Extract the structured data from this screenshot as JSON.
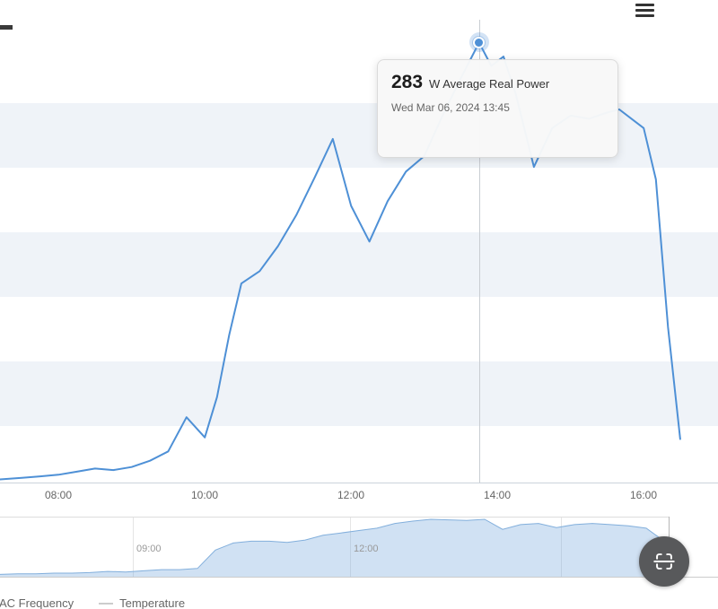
{
  "accent_color": "#4e90d6",
  "band_color": "#eff3f8",
  "icons": {
    "menu": "hamburger-icon",
    "capture": "web-capture-icon"
  },
  "chart_data": {
    "type": "line",
    "title": "",
    "series": [
      {
        "name": "Average Real Power",
        "unit": "W",
        "color": "#4e90d6",
        "points": [
          [
            "07:12",
            2
          ],
          [
            "07:30",
            3
          ],
          [
            "07:45",
            4
          ],
          [
            "08:00",
            5
          ],
          [
            "08:15",
            7
          ],
          [
            "08:30",
            9
          ],
          [
            "08:45",
            8
          ],
          [
            "09:00",
            10
          ],
          [
            "09:15",
            14
          ],
          [
            "09:30",
            20
          ],
          [
            "09:45",
            42
          ],
          [
            "10:00",
            29
          ],
          [
            "10:10",
            55
          ],
          [
            "10:20",
            95
          ],
          [
            "10:30",
            128
          ],
          [
            "10:45",
            136
          ],
          [
            "11:00",
            152
          ],
          [
            "11:15",
            172
          ],
          [
            "11:30",
            196
          ],
          [
            "11:45",
            221
          ],
          [
            "12:00",
            178
          ],
          [
            "12:15",
            155
          ],
          [
            "12:30",
            181
          ],
          [
            "12:45",
            200
          ],
          [
            "13:00",
            210
          ],
          [
            "13:15",
            236
          ],
          [
            "13:30",
            260
          ],
          [
            "13:45",
            283
          ],
          [
            "13:55",
            268
          ],
          [
            "14:05",
            274
          ],
          [
            "14:15",
            250
          ],
          [
            "14:30",
            203
          ],
          [
            "14:45",
            228
          ],
          [
            "15:00",
            236
          ],
          [
            "15:15",
            234
          ],
          [
            "15:30",
            238
          ],
          [
            "15:40",
            240
          ],
          [
            "15:50",
            234
          ],
          [
            "16:00",
            228
          ],
          [
            "16:10",
            195
          ],
          [
            "16:20",
            100
          ],
          [
            "16:30",
            28
          ]
        ]
      }
    ],
    "x_axis": {
      "tick_labels": [
        "08:00",
        "10:00",
        "12:00",
        "14:00",
        "16:00"
      ],
      "range_hours": [
        7.2,
        16.55
      ]
    },
    "y_axis": {
      "range_watts": [
        0,
        300
      ],
      "gridbands": "horizontal-stripes"
    },
    "tooltip": {
      "value": "283",
      "value_num": 283,
      "time": "13:45",
      "series_label": "W Average Real Power",
      "datetime": "Wed Mar 06, 2024 13:45"
    },
    "navigator": {
      "tick_labels": [
        "09:00",
        "12:00"
      ],
      "heights_pct": [
        4,
        5,
        5,
        6,
        6,
        7,
        9,
        8,
        10,
        12,
        12,
        14,
        45,
        57,
        60,
        60,
        58,
        62,
        70,
        74,
        78,
        82,
        90,
        94,
        97,
        96,
        95,
        97,
        80,
        88,
        90,
        83,
        88,
        90,
        88,
        86,
        82,
        60,
        40
      ]
    },
    "legend": [
      {
        "label": "AC Frequency"
      },
      {
        "label": "Temperature"
      }
    ]
  }
}
